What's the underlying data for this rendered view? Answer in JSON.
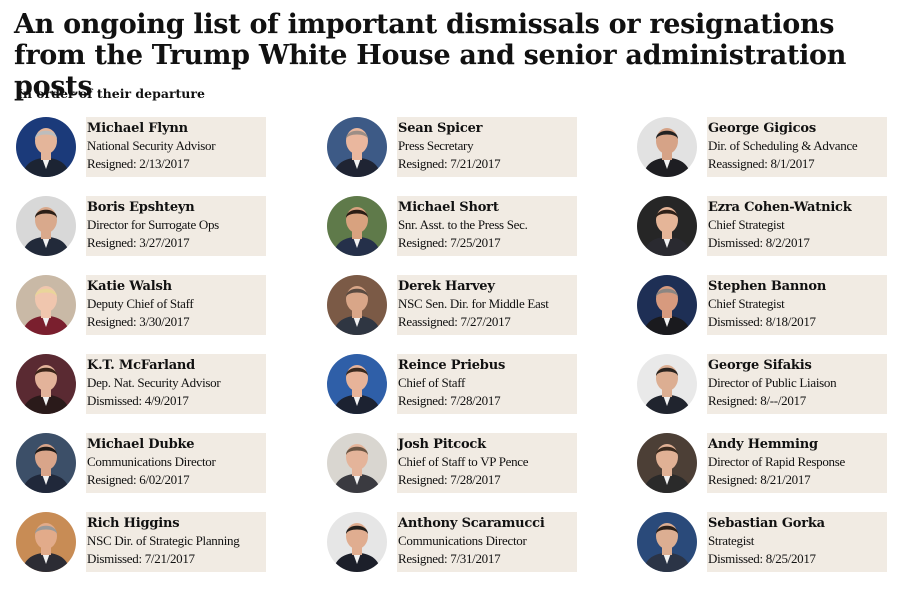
{
  "title": "An ongoing list of important dismissals or resignations from the Trump White House and senior administration posts",
  "subtitle": "In order of their departure",
  "columns": [
    {
      "people": [
        {
          "name": "Michael Flynn",
          "role": "National Security Advisor",
          "status": "Resigned: 2/13/2017",
          "bg": "#1b3a7a",
          "skin": "#e4b59a",
          "hair": "#bdbdbd",
          "suit": "#1c2433"
        },
        {
          "name": "Boris Epshteyn",
          "role": "Director for Surrogate Ops",
          "status": "Resigned: 3/27/2017",
          "bg": "#d8d8d8",
          "skin": "#d9a98c",
          "hair": "#2b1f17",
          "suit": "#222a3a"
        },
        {
          "name": "Katie Walsh",
          "role": "Deputy Chief of Staff",
          "status": "Resigned: 3/30/2017",
          "bg": "#c9b9a6",
          "skin": "#f0c6ae",
          "hair": "#e9d59a",
          "suit": "#7a1f2e"
        },
        {
          "name": "K.T. McFarland",
          "role": "Dep. Nat. Security Advisor",
          "status": "Dismissed: 4/9/2017",
          "bg": "#5a2a32",
          "skin": "#e3b39a",
          "hair": "#3a2418",
          "suit": "#2a1a1a"
        },
        {
          "name": "Michael Dubke",
          "role": "Communications Director",
          "status": "Resigned: 6/02/2017",
          "bg": "#3c4f68",
          "skin": "#d9a58a",
          "hair": "#1e1a18",
          "suit": "#20283a"
        },
        {
          "name": "Rich Higgins",
          "role": "NSC Dir. of Strategic Planning",
          "status": "Dismissed: 7/21/2017",
          "bg": "#c88c55",
          "skin": "#e2ab8a",
          "hair": "#9a9a9a",
          "suit": "#2c2c34"
        }
      ]
    },
    {
      "people": [
        {
          "name": "Sean Spicer",
          "role": "Press Secretary",
          "status": "Resigned: 7/21/2017",
          "bg": "#3d5a86",
          "skin": "#eab79e",
          "hair": "#9c8e86",
          "suit": "#1f2433"
        },
        {
          "name": "Michael Short",
          "role": "Snr. Asst. to the Press Sec.",
          "status": "Resigned: 7/25/2017",
          "bg": "#5f7a4a",
          "skin": "#d8a27f",
          "hair": "#2a1d15",
          "suit": "#25304a"
        },
        {
          "name": "Derek Harvey",
          "role": "NSC Sen. Dir. for Middle East",
          "status": "Reassigned: 7/27/2017",
          "bg": "#7b5a46",
          "skin": "#d9a688",
          "hair": "#5a4a40",
          "suit": "#2f3642"
        },
        {
          "name": "Reince Priebus",
          "role": "Chief of Staff",
          "status": "Resigned: 7/28/2017",
          "bg": "#2f5fa8",
          "skin": "#e7b399",
          "hair": "#3a2a20",
          "suit": "#1c2231"
        },
        {
          "name": "Josh Pitcock",
          "role": "Chief of Staff to VP Pence",
          "status": "Resigned: 7/28/2017",
          "bg": "#d9d6d0",
          "skin": "#e4b49a",
          "hair": "#6b5644",
          "suit": "#3a3a40"
        },
        {
          "name": "Anthony Scaramucci",
          "role": "Communications Director",
          "status": "Resigned: 7/31/2017",
          "bg": "#e6e6e6",
          "skin": "#e0ad90",
          "hair": "#24201d",
          "suit": "#1c1f2a"
        }
      ]
    },
    {
      "people": [
        {
          "name": "George Gigicos",
          "role": "Dir. of Scheduling & Advance",
          "status": "Reassigned: 8/1/2017",
          "bg": "#e2e2e2",
          "skin": "#d6a387",
          "hair": "#222",
          "suit": "#1e1e22"
        },
        {
          "name": "Ezra Cohen-Watnick",
          "role": "Chief Strategist",
          "status": "Dismissed: 8/2/2017",
          "bg": "#262626",
          "skin": "#e5b598",
          "hair": "#2e2018",
          "suit": "#2a2a30"
        },
        {
          "name": "Stephen Bannon",
          "role": "Chief Strategist",
          "status": "Dismissed: 8/18/2017",
          "bg": "#1e2f55",
          "skin": "#d79a7e",
          "hair": "#8c8682",
          "suit": "#1a1a1e"
        },
        {
          "name": "George Sifakis",
          "role": "Director of Public Liaison",
          "status": "Resigned: 8/--/2017",
          "bg": "#e9e9e9",
          "skin": "#dcae92",
          "hair": "#2a2420",
          "suit": "#20242e"
        },
        {
          "name": "Andy Hemming",
          "role": "Director of Rapid Response",
          "status": "Resigned: 8/21/2017",
          "bg": "#4c3f36",
          "skin": "#e0b195",
          "hair": "#3a2a1e",
          "suit": "#2a2a2a"
        },
        {
          "name": "Sebastian Gorka",
          "role": "Strategist",
          "status": "Dismissed: 8/25/2017",
          "bg": "#2a4a7a",
          "skin": "#dcae92",
          "hair": "#2a201a",
          "suit": "#2b3446"
        }
      ]
    }
  ]
}
